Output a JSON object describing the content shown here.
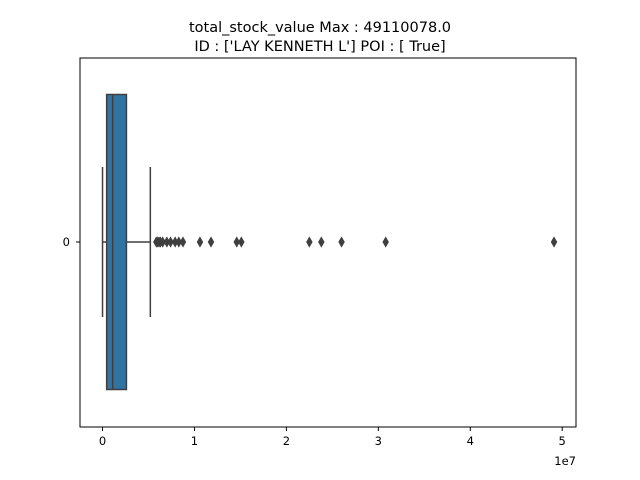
{
  "chart_data": {
    "type": "box",
    "orientation": "horizontal",
    "title_lines": [
      "total_stock_value  Max : 49110078.0",
      "ID : ['LAY KENNETH L']  POI : [ True]"
    ],
    "xlabel": "",
    "ylabel": "",
    "x_offset_label": "1e7",
    "xlim": [
      -2450000,
      51500000
    ],
    "x_ticks": [
      {
        "value": 0,
        "label": "0"
      },
      {
        "value": 10000000,
        "label": "1"
      },
      {
        "value": 20000000,
        "label": "2"
      },
      {
        "value": 30000000,
        "label": "3"
      },
      {
        "value": 40000000,
        "label": "4"
      },
      {
        "value": 50000000,
        "label": "5"
      }
    ],
    "categories": [
      "0"
    ],
    "box": {
      "whisker_low": 0,
      "q1": 450000,
      "median": 1100000,
      "q3": 2600000,
      "whisker_high": 5200000
    },
    "outliers": [
      5850000,
      6000000,
      6150000,
      6300000,
      6550000,
      7000000,
      7400000,
      7900000,
      8300000,
      8750000,
      10600000,
      11800000,
      14600000,
      15100000,
      22500000,
      23800000,
      26000000,
      30800000,
      49110078
    ],
    "colors": {
      "box_fill": "#3274a1",
      "box_edge": "#3f3f3f",
      "outlier": "#3f3f3f",
      "axes": "#000000"
    },
    "grid": false
  }
}
